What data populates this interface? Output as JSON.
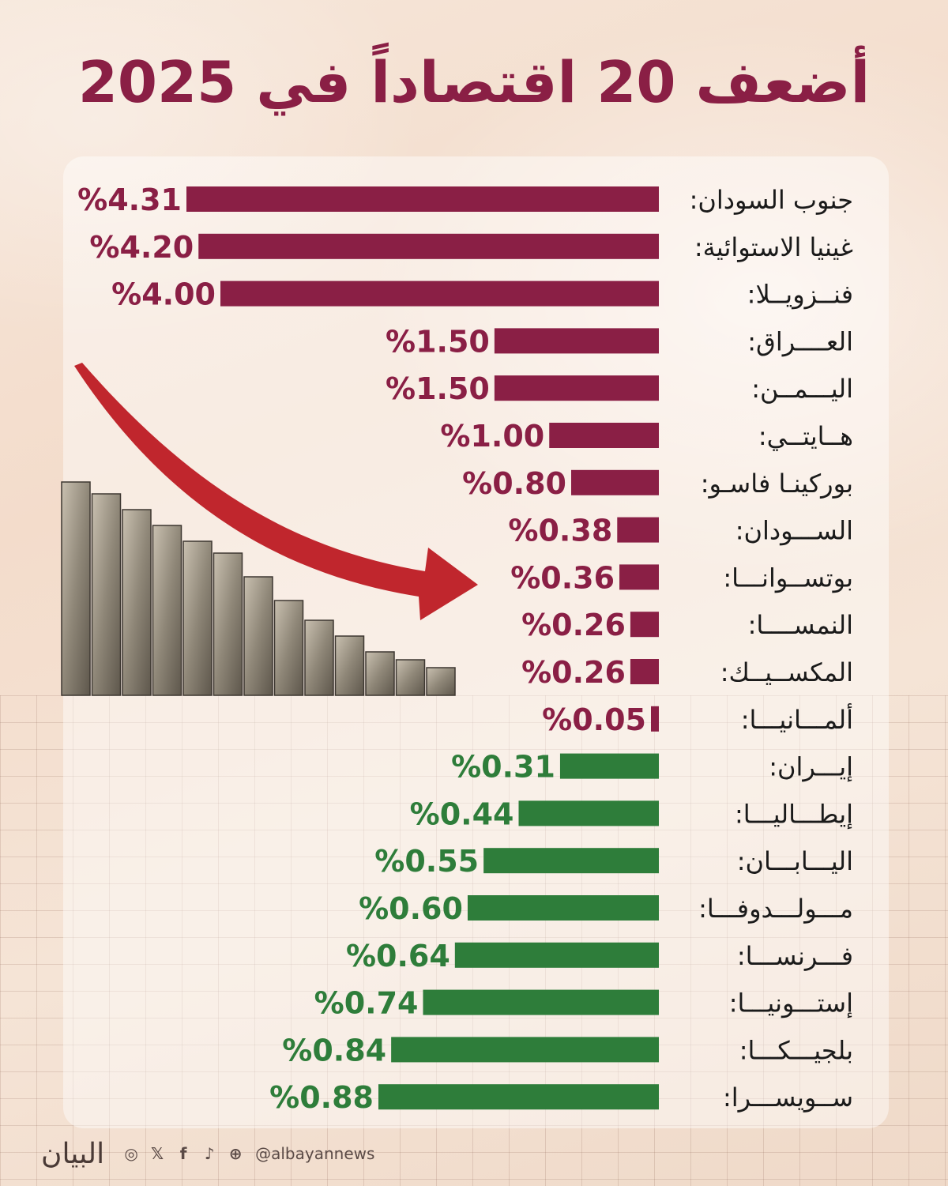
{
  "title": "أضعف 20 اقتصاداً في 2025",
  "colors": {
    "negative": "#8a1f45",
    "positive": "#2e7d3a",
    "title": "#8a1f45",
    "label": "#1a1a1a"
  },
  "chart_data": {
    "type": "bar",
    "orientation": "horizontal",
    "title": "أضعف 20 اقتصاداً في 2025",
    "unit": "%",
    "categories": [
      "جنوب السودان:",
      "غينيا الاستوائية:",
      "فنــزويــلا:",
      "العــــراق:",
      "اليـــمــن:",
      "هــايتــي:",
      "بوركينـا فاسـو:",
      "الســـودان:",
      "بوتســوانـــا:",
      "النمســــا:",
      "المكســيــك:",
      "ألمـــانيـــا:",
      "إيـــران:",
      "إيطـــاليـــا:",
      "اليـــابـــان:",
      "مـــولـــدوفـــا:",
      "فـــرنســـا:",
      "إستـــونيـــا:",
      "بلجيـــكـــا:",
      "ســويســـرا:"
    ],
    "values": [
      4.31,
      4.2,
      4.0,
      1.5,
      1.5,
      1.0,
      0.8,
      0.38,
      0.36,
      0.26,
      0.26,
      0.05,
      0.31,
      0.44,
      0.55,
      0.6,
      0.64,
      0.74,
      0.84,
      0.88
    ],
    "value_labels": [
      "%4.31",
      "%4.20",
      "%4.00",
      "%1.50",
      "%1.50",
      "%1.00",
      "%0.80",
      "%0.38",
      "%0.36",
      "%0.26",
      "%0.26",
      "%0.05",
      "%0.31",
      "%0.44",
      "%0.55",
      "%0.60",
      "%0.64",
      "%0.74",
      "%0.84",
      "%0.88"
    ],
    "groups": [
      "negative",
      "negative",
      "negative",
      "negative",
      "negative",
      "negative",
      "negative",
      "negative",
      "negative",
      "negative",
      "negative",
      "negative",
      "positive",
      "positive",
      "positive",
      "positive",
      "positive",
      "positive",
      "positive",
      "positive"
    ],
    "group_colors": {
      "negative": "#8a1f45",
      "positive": "#2e7d3a"
    },
    "grid": false,
    "legend": "none"
  },
  "footer": {
    "brand": "البيان",
    "handle": "@albayannews",
    "icons": [
      "instagram-icon",
      "x-icon",
      "facebook-icon",
      "tiktok-icon",
      "globe-icon"
    ]
  }
}
